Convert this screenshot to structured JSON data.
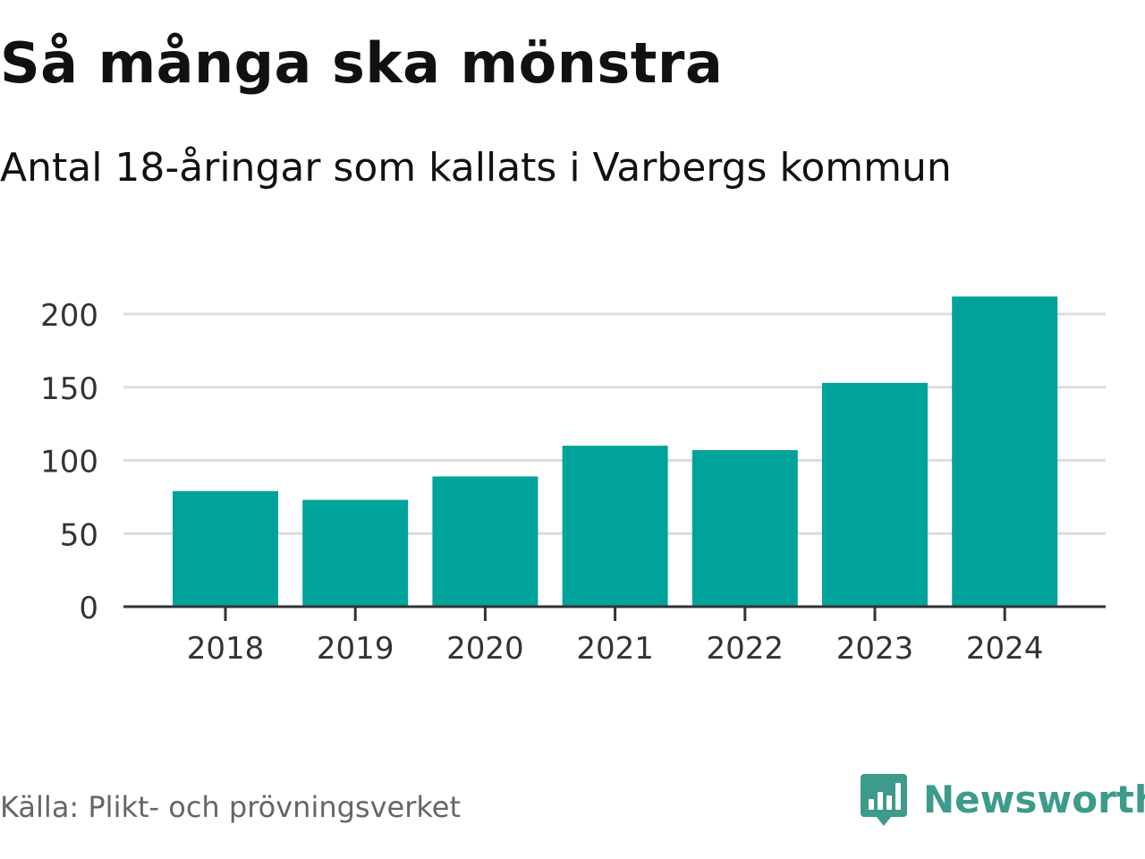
{
  "title": "Så många ska mönstra",
  "subtitle": "Antal 18-åringar som kallats i Varbergs kommun",
  "source": "Källa: Plikt- och prövningsverket",
  "brand": {
    "name": "Newsworthy",
    "icon": "newsworthy-logo-icon",
    "color": "#3c9b8b"
  },
  "colors": {
    "bar": "#00a39a",
    "grid": "#dcdcdc",
    "axis": "#333333",
    "tick_text": "#333333"
  },
  "chart_data": {
    "type": "bar",
    "title": "Så många ska mönstra",
    "subtitle": "Antal 18-åringar som kallats i Varbergs kommun",
    "xlabel": "",
    "ylabel": "",
    "categories": [
      "2018",
      "2019",
      "2020",
      "2021",
      "2022",
      "2023",
      "2024"
    ],
    "values": [
      79,
      73,
      89,
      110,
      107,
      153,
      212
    ],
    "ylim": [
      0,
      220
    ],
    "yticks": [
      "0",
      "50",
      "100",
      "150",
      "200"
    ],
    "grid": true,
    "legend": "none"
  }
}
